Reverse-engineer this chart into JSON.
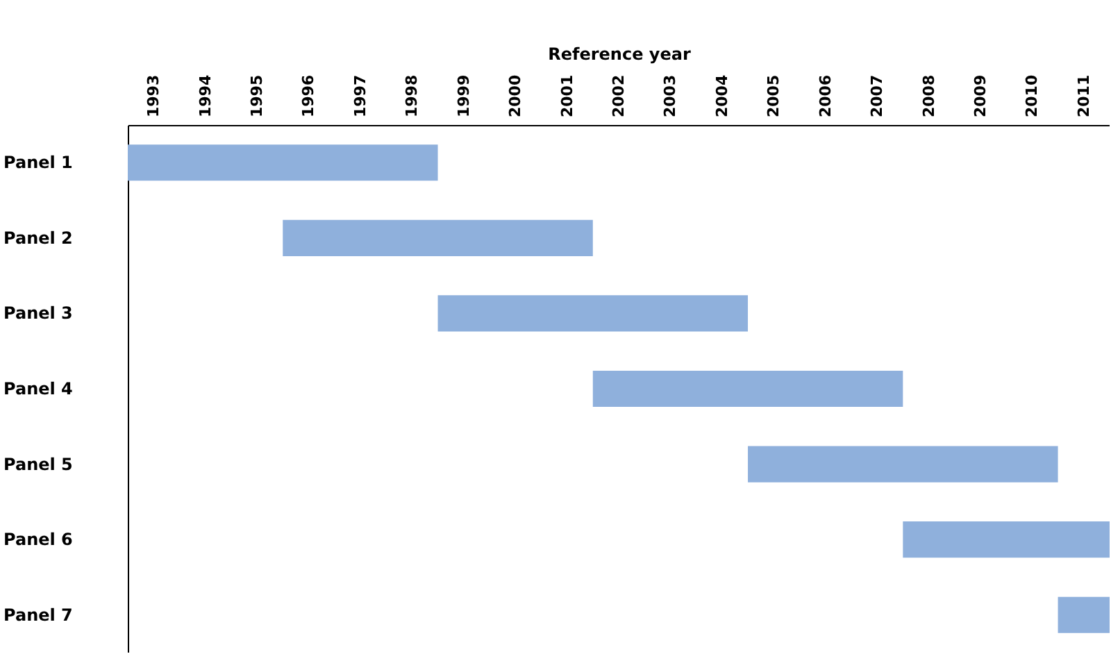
{
  "chart_data": {
    "type": "bar",
    "orientation": "horizontal",
    "xlabel": "Reference year",
    "categories": [
      "Panel 1",
      "Panel 2",
      "Panel 3",
      "Panel 4",
      "Panel 5",
      "Panel 6",
      "Panel 7"
    ],
    "base": [
      1993,
      1996,
      1999,
      2002,
      2005,
      2008,
      2011
    ],
    "values": [
      6,
      6,
      6,
      6,
      6,
      4,
      1
    ],
    "color": "#8fb0dc",
    "xlim": [
      1993,
      2012
    ],
    "xticks": [
      {
        "value": 1993.5,
        "label": "1993"
      },
      {
        "value": 1994.5,
        "label": "1994"
      },
      {
        "value": 1995.5,
        "label": "1995"
      },
      {
        "value": 1996.5,
        "label": "1996"
      },
      {
        "value": 1997.5,
        "label": "1997"
      },
      {
        "value": 1998.5,
        "label": "1998"
      },
      {
        "value": 1999.5,
        "label": "1999"
      },
      {
        "value": 2000.5,
        "label": "2000"
      },
      {
        "value": 2001.5,
        "label": "2001"
      },
      {
        "value": 2002.5,
        "label": "2002"
      },
      {
        "value": 2003.5,
        "label": "2003"
      },
      {
        "value": 2004.5,
        "label": "2004"
      },
      {
        "value": 2005.5,
        "label": "2005"
      },
      {
        "value": 2006.5,
        "label": "2006"
      },
      {
        "value": 2007.5,
        "label": "2007"
      },
      {
        "value": 2008.5,
        "label": "2008"
      },
      {
        "value": 2009.5,
        "label": "2009"
      },
      {
        "value": 2010.5,
        "label": "2010"
      },
      {
        "value": 2011.5,
        "label": "2011"
      }
    ],
    "grid": false
  }
}
